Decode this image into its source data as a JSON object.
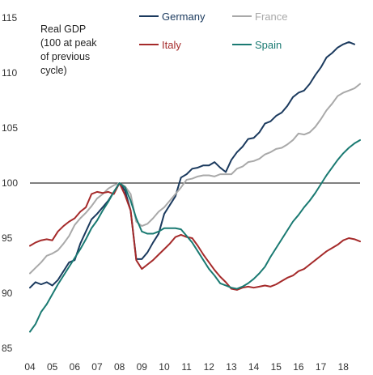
{
  "chart_data": {
    "type": "line",
    "title": "",
    "ylabel_lines": [
      "Real GDP",
      "(100 at peak",
      "of previous",
      "cycle)"
    ],
    "xlabel": "",
    "x_tick_labels": [
      "04",
      "05",
      "06",
      "07",
      "08",
      "09",
      "10",
      "11",
      "12",
      "13",
      "14",
      "15",
      "16",
      "17",
      "18"
    ],
    "x_tick_values": [
      2004,
      2005,
      2006,
      2007,
      2008,
      2009,
      2010,
      2011,
      2012,
      2013,
      2014,
      2015,
      2016,
      2017,
      2018
    ],
    "xlim": [
      2004,
      2018.75
    ],
    "ylim": [
      85,
      115
    ],
    "y_ticks": [
      85,
      90,
      95,
      100,
      105,
      110,
      115
    ],
    "reference_line": 100,
    "legend_placement": "top",
    "series": [
      {
        "name": "Germany",
        "color": "#1b3a5e",
        "x": [
          2004.0,
          2004.25,
          2004.5,
          2004.75,
          2005.0,
          2005.25,
          2005.5,
          2005.75,
          2006.0,
          2006.25,
          2006.5,
          2006.75,
          2007.0,
          2007.25,
          2007.5,
          2007.75,
          2008.0,
          2008.25,
          2008.5,
          2008.75,
          2009.0,
          2009.25,
          2009.5,
          2009.75,
          2010.0,
          2010.25,
          2010.5,
          2010.75,
          2011.0,
          2011.25,
          2011.5,
          2011.75,
          2012.0,
          2012.25,
          2012.5,
          2012.75,
          2013.0,
          2013.25,
          2013.5,
          2013.75,
          2014.0,
          2014.25,
          2014.5,
          2014.75,
          2015.0,
          2015.25,
          2015.5,
          2015.75,
          2016.0,
          2016.25,
          2016.5,
          2016.75,
          2017.0,
          2017.25,
          2017.5,
          2017.75,
          2018.0,
          2018.25,
          2018.5
        ],
        "values": [
          90.5,
          91.0,
          90.8,
          91.0,
          90.7,
          91.2,
          92.0,
          92.8,
          93.0,
          94.5,
          95.6,
          96.7,
          97.2,
          97.8,
          98.4,
          99.2,
          100.0,
          99.3,
          97.5,
          93.1,
          93.1,
          93.7,
          94.6,
          95.4,
          97.2,
          98.0,
          98.8,
          100.5,
          100.8,
          101.3,
          101.4,
          101.6,
          101.6,
          101.9,
          101.4,
          101.0,
          102.1,
          102.8,
          103.3,
          104.0,
          104.1,
          104.6,
          105.4,
          105.6,
          106.1,
          106.4,
          107.0,
          107.8,
          108.2,
          108.4,
          109.0,
          109.8,
          110.5,
          111.4,
          111.8,
          112.3,
          112.6,
          112.8,
          112.6
        ]
      },
      {
        "name": "France",
        "color": "#a9a9a9",
        "x": [
          2004.0,
          2004.25,
          2004.5,
          2004.75,
          2005.0,
          2005.25,
          2005.5,
          2005.75,
          2006.0,
          2006.25,
          2006.5,
          2006.75,
          2007.0,
          2007.25,
          2007.5,
          2007.75,
          2008.0,
          2008.25,
          2008.5,
          2008.75,
          2009.0,
          2009.25,
          2009.5,
          2009.75,
          2010.0,
          2010.25,
          2010.5,
          2010.75,
          2011.0,
          2011.25,
          2011.5,
          2011.75,
          2012.0,
          2012.25,
          2012.5,
          2012.75,
          2013.0,
          2013.25,
          2013.5,
          2013.75,
          2014.0,
          2014.25,
          2014.5,
          2014.75,
          2015.0,
          2015.25,
          2015.5,
          2015.75,
          2016.0,
          2016.25,
          2016.5,
          2016.75,
          2017.0,
          2017.25,
          2017.5,
          2017.75,
          2018.0,
          2018.25,
          2018.5,
          2018.75
        ],
        "values": [
          91.8,
          92.3,
          92.8,
          93.4,
          93.6,
          93.9,
          94.5,
          95.2,
          96.2,
          96.8,
          97.3,
          97.9,
          98.6,
          99.0,
          99.5,
          99.8,
          100.0,
          99.7,
          99.0,
          96.5,
          96.1,
          96.3,
          96.8,
          97.4,
          97.8,
          98.4,
          99.0,
          99.6,
          100.3,
          100.4,
          100.6,
          100.7,
          100.7,
          100.6,
          100.8,
          100.8,
          100.8,
          101.3,
          101.5,
          101.9,
          102.0,
          102.2,
          102.6,
          102.8,
          103.1,
          103.2,
          103.5,
          103.9,
          104.5,
          104.4,
          104.6,
          105.1,
          105.8,
          106.6,
          107.2,
          107.9,
          108.2,
          108.4,
          108.6,
          109.0
        ]
      },
      {
        "name": "Italy",
        "color": "#a52a2a",
        "x": [
          2004.0,
          2004.25,
          2004.5,
          2004.75,
          2005.0,
          2005.25,
          2005.5,
          2005.75,
          2006.0,
          2006.25,
          2006.5,
          2006.75,
          2007.0,
          2007.25,
          2007.5,
          2007.75,
          2008.0,
          2008.25,
          2008.5,
          2008.75,
          2009.0,
          2009.25,
          2009.5,
          2009.75,
          2010.0,
          2010.25,
          2010.5,
          2010.75,
          2011.0,
          2011.25,
          2011.5,
          2011.75,
          2012.0,
          2012.25,
          2012.5,
          2012.75,
          2013.0,
          2013.25,
          2013.5,
          2013.75,
          2014.0,
          2014.25,
          2014.5,
          2014.75,
          2015.0,
          2015.25,
          2015.5,
          2015.75,
          2016.0,
          2016.25,
          2016.5,
          2016.75,
          2017.0,
          2017.25,
          2017.5,
          2017.75,
          2018.0,
          2018.25,
          2018.5,
          2018.75
        ],
        "values": [
          94.3,
          94.6,
          94.8,
          94.9,
          94.8,
          95.6,
          96.1,
          96.5,
          96.8,
          97.4,
          97.8,
          99.0,
          99.2,
          99.1,
          99.2,
          99.0,
          100.0,
          98.9,
          97.5,
          93.0,
          92.2,
          92.6,
          93.0,
          93.5,
          94.0,
          94.5,
          95.1,
          95.3,
          95.1,
          95.0,
          94.3,
          93.5,
          92.8,
          92.1,
          91.5,
          91.0,
          90.4,
          90.3,
          90.5,
          90.6,
          90.5,
          90.6,
          90.7,
          90.6,
          90.8,
          91.1,
          91.4,
          91.6,
          92.0,
          92.2,
          92.6,
          93.0,
          93.4,
          93.8,
          94.1,
          94.4,
          94.8,
          95.0,
          94.9,
          94.7
        ]
      },
      {
        "name": "Spain",
        "color": "#1a7a72",
        "x": [
          2004.0,
          2004.25,
          2004.5,
          2004.75,
          2005.0,
          2005.25,
          2005.5,
          2005.75,
          2006.0,
          2006.25,
          2006.5,
          2006.75,
          2007.0,
          2007.25,
          2007.5,
          2007.75,
          2008.0,
          2008.25,
          2008.5,
          2008.75,
          2009.0,
          2009.25,
          2009.5,
          2009.75,
          2010.0,
          2010.25,
          2010.5,
          2010.75,
          2011.0,
          2011.25,
          2011.5,
          2011.75,
          2012.0,
          2012.25,
          2012.5,
          2012.75,
          2013.0,
          2013.25,
          2013.5,
          2013.75,
          2014.0,
          2014.25,
          2014.5,
          2014.75,
          2015.0,
          2015.25,
          2015.5,
          2015.75,
          2016.0,
          2016.25,
          2016.5,
          2016.75,
          2017.0,
          2017.25,
          2017.5,
          2017.75,
          2018.0,
          2018.25,
          2018.5,
          2018.75
        ],
        "values": [
          86.5,
          87.2,
          88.3,
          89.0,
          89.9,
          90.8,
          91.6,
          92.4,
          93.2,
          94.0,
          94.9,
          95.9,
          96.6,
          97.5,
          98.3,
          99.2,
          100.0,
          99.6,
          98.4,
          96.8,
          95.6,
          95.4,
          95.4,
          95.6,
          95.9,
          95.9,
          95.9,
          95.8,
          95.2,
          94.6,
          93.8,
          93.0,
          92.2,
          91.6,
          90.9,
          90.7,
          90.5,
          90.4,
          90.6,
          90.9,
          91.3,
          91.8,
          92.4,
          93.3,
          94.1,
          94.9,
          95.7,
          96.5,
          97.1,
          97.8,
          98.4,
          99.1,
          99.9,
          100.7,
          101.4,
          102.1,
          102.7,
          103.2,
          103.6,
          103.9
        ]
      }
    ]
  }
}
